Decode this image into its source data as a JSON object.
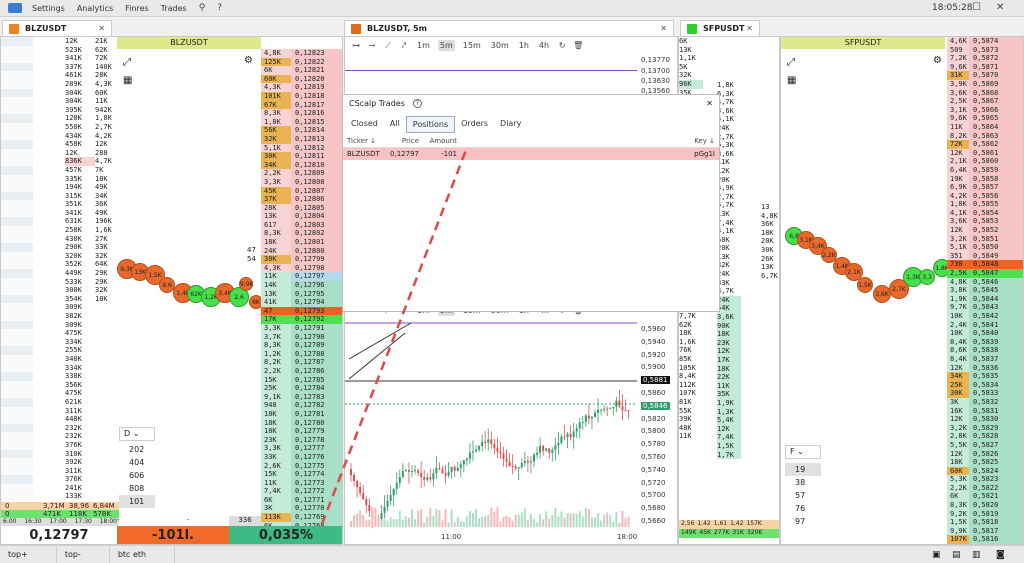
{
  "menu": {
    "settings": "Settings",
    "analytics": "Analytics",
    "finres": "Finres",
    "trades": "Trades",
    "clock": "18:05:28"
  },
  "tabs": {
    "left": {
      "label": "BLZUSDT",
      "color": "#f0821e"
    },
    "middle": {
      "label": "BLZUSDT, 5m",
      "color": "#e0691f"
    },
    "right": {
      "label": "SFPUSDT",
      "color": "#2ad12a"
    }
  },
  "left_dom": {
    "header": "BLZUSDT",
    "footer_price": "0,12797",
    "footer_pnl": "-101l.",
    "footer_pct": "0,035%",
    "footer_small": "336",
    "times": [
      "6:00",
      "16:30",
      "17:00",
      "17:30",
      "18:00"
    ],
    "prices_ask": [
      "0,12823",
      "0,12822",
      "0,12821",
      "0,12820",
      "0,12819",
      "0,12818",
      "0,12817",
      "0,12816",
      "0,12815",
      "0,12814",
      "0,12813",
      "0,12812",
      "0,12811",
      "0,12810",
      "0,12809",
      "0,12808",
      "0,12807",
      "0,12806",
      "0,12805",
      "0,12804",
      "0,12803",
      "0,12802",
      "0,12801",
      "0,12800",
      "0,12799",
      "0,12798"
    ],
    "vols_ask": [
      "4,8K",
      "125K",
      "6K",
      "60K",
      "4,3K",
      "101K",
      "67K",
      "8,3K",
      "1,8K",
      "56K",
      "32K",
      "5,1K",
      "30K",
      "34K",
      "2,2K",
      "3,3K",
      "45K",
      "37K",
      "28K",
      "13K",
      "617",
      "8,3K",
      "18K",
      "24K",
      "30K",
      "4,3K"
    ],
    "prices_bid": [
      "0,12797",
      "0,12796",
      "0,12795",
      "0,12794",
      "0,12793",
      "0,12792",
      "0,12791",
      "0,12790",
      "0,12789",
      "0,12788",
      "0,12787",
      "0,12786",
      "0,12785",
      "0,12784",
      "0,12783",
      "0,12782",
      "0,12781",
      "0,12780",
      "0,12779",
      "0,12778",
      "0,12777",
      "0,12776",
      "0,12775",
      "0,12774",
      "0,12773",
      "0,12772",
      "0,12771",
      "0,12770",
      "0,12769",
      "0,12768",
      "0,12767",
      "0,12766"
    ],
    "vols_bid": [
      "11K",
      "14K",
      "13K",
      "41K",
      "47",
      "17K",
      "3,3K",
      "3,7K",
      "8,3K",
      "1,2K",
      "8,2K",
      "2,2K",
      "15K",
      "25K",
      "9,1K",
      "948",
      "18K",
      "18K",
      "18K",
      "23K",
      "3,3K",
      "33K",
      "2,6K",
      "15K",
      "11K",
      "7,4K",
      "6K",
      "3K",
      "113K",
      "6K",
      "5,1K",
      "33K"
    ],
    "hist_left": [
      "12K",
      "523K",
      "341K",
      "337K",
      "461K",
      "289K",
      "304K",
      "304K",
      "395K",
      "120K",
      "550K",
      "434K",
      "458K",
      "12K",
      "836K",
      "457K",
      "335K",
      "194K",
      "315K",
      "351K",
      "341K",
      "631K",
      "258K",
      "430K",
      "290K",
      "320K",
      "352K",
      "449K",
      "533K",
      "300K",
      "354K",
      "309K",
      "382K",
      "309K",
      "475K",
      "334K",
      "255K",
      "340K",
      "334K",
      "338K",
      "356K",
      "475K",
      "621K",
      "311K",
      "448K",
      "232K",
      "232K",
      "376K",
      "310K",
      "392K",
      "311K",
      "376K",
      "241K",
      "133K"
    ],
    "hist_right": [
      "21K",
      "62K",
      "72K",
      "140K",
      "28K",
      "4,3K",
      "60K",
      "11K",
      "942K",
      "1,8K",
      "2,7K",
      "4,2K",
      "12K",
      "288",
      "4,7K",
      "7K",
      "18K",
      "49K",
      "34K",
      "36K",
      "49K",
      "196K",
      "1,6K",
      "27K",
      "33K",
      "32K",
      "64K",
      "29K",
      "29K",
      "32K",
      "18K"
    ],
    "stats": [
      "0",
      "3,71M",
      "38,96",
      "6,84M"
    ],
    "stats2": [
      "0",
      "471K",
      "118K",
      "578K"
    ],
    "mid_numbers": [
      "47",
      "54"
    ],
    "depth_box": "D",
    "depth_values": [
      "202",
      "404",
      "606",
      "808",
      "101"
    ],
    "bubble_labels": [
      "9,3K",
      "13K",
      "1,5K",
      "9,6",
      "1,4K",
      "62K",
      "1,2K",
      "3,4K",
      "2,6",
      "9,9K",
      "6K"
    ]
  },
  "cscalp": {
    "title": "CScalp Trades",
    "tabs": [
      "Closed",
      "All",
      "Positions",
      "Orders",
      "Diary"
    ],
    "cols": [
      "Ticker",
      "Price",
      "Amount",
      "Key"
    ],
    "row": [
      "BLZUSDT",
      "0,12797",
      "-101",
      "pGg1I"
    ]
  },
  "chart": {
    "timeframes": [
      "1m",
      "5m",
      "15m",
      "30m",
      "1h",
      "4h"
    ],
    "top_prices": [
      "0,13770",
      "0,13700",
      "0,13630",
      "0,13560"
    ],
    "y_labels": [
      "0,5960",
      "0,5940",
      "0,5920",
      "0,5900",
      "0,5881",
      "0,5860",
      "0,5846",
      "0,5820",
      "0,5800",
      "0,5780",
      "0,5760",
      "0,5740",
      "0,5720",
      "0,5700",
      "0,5680",
      "0,5660"
    ],
    "x_labels": [
      "11:00",
      "18:00"
    ],
    "current_price": "0,5881",
    "mark_price": "0,5846"
  },
  "right_dom": {
    "header": "SFPUSDT",
    "prices": [
      "0,5874",
      "0,5873",
      "0,5872",
      "0,5871",
      "0,5870",
      "0,5869",
      "0,5868",
      "0,5867",
      "0,5866",
      "0,5865",
      "0,5864",
      "0,5863",
      "0,5862",
      "0,5861",
      "0,5860",
      "0,5859",
      "0,5858",
      "0,5857",
      "0,5856",
      "0,5855",
      "0,5854",
      "0,5853",
      "0,5852",
      "0,5851",
      "0,5850",
      "0,5849",
      "0,5848",
      "0,5847",
      "0,5846",
      "0,5845",
      "0,5844",
      "0,5843",
      "0,5842",
      "0,5841",
      "0,5840",
      "0,5839",
      "0,5838",
      "0,5837",
      "0,5836",
      "0,5835",
      "0,5834",
      "0,5833",
      "0,5832",
      "0,5831",
      "0,5830",
      "0,5829",
      "0,5828",
      "0,5827",
      "0,5826",
      "0,5825",
      "0,5824",
      "0,5823",
      "0,5822",
      "0,5821",
      "0,5820",
      "0,5819",
      "0,5818",
      "0,5817",
      "0,5816"
    ],
    "vols": [
      "4,6K",
      "509",
      "7,2K",
      "9,6K",
      "31K",
      "3,9K",
      "3,6K",
      "2,5K",
      "3,1K",
      "9,6K",
      "11K",
      "8,2K",
      "72K",
      "12K",
      "2,1K",
      "6,4K",
      "19K",
      "6,9K",
      "4,2K",
      "1,8K",
      "4,1K",
      "3,6K",
      "12K",
      "3,2K",
      "5,1K",
      "351",
      "730",
      "2,5K",
      "4,8K",
      "3,8K",
      "1,9K",
      "9,7K",
      "10K",
      "2,4K",
      "10K",
      "8,4K",
      "8,6K",
      "8,4K",
      "12K",
      "34K",
      "25K",
      "30K",
      "3K",
      "16K",
      "12K",
      "3,2K",
      "2,8K",
      "5,5K",
      "12K",
      "18K",
      "60K",
      "5,3K",
      "2,2K",
      "6K",
      "8,3K",
      "9,2K",
      "1,5K",
      "9,9K",
      "107K"
    ],
    "depth_box": "F",
    "depth_values": [
      "19",
      "38",
      "57",
      "76",
      "97"
    ],
    "bubble_labels": [
      "6,8",
      "3,1K",
      "3,4K",
      "2,2K",
      "1,4K",
      "2,1K",
      "1,5K",
      "3,6K",
      "2,7K",
      "1,3K",
      "3,3",
      "1,8K"
    ]
  },
  "mid_dom": {
    "col1": [
      "6K",
      "13K",
      "1,1K",
      "5K",
      "32K",
      "96K",
      "35K",
      "37K",
      "2K",
      "4,3K",
      "3,6K",
      "3,6K",
      "2K",
      "1,7K",
      "12K",
      "23K",
      "17K",
      "13K",
      "11K",
      "42K",
      "5,8K",
      "9,3K",
      "20K",
      "7,8K",
      "14K",
      "19K",
      "12K",
      "31K",
      "31K",
      "11K",
      "8,8K",
      "23K",
      "7,7K",
      "62K",
      "18K",
      "1,6K",
      "76K",
      "85K",
      "105K",
      "8,4K",
      "112K",
      "107K",
      "81K",
      "55K",
      "39K",
      "48K",
      "11K"
    ],
    "col2": [
      "1,8K",
      "6,3K",
      "4,7K",
      "3,6K",
      "4,1K",
      "24K",
      "2,7K",
      "6,3K",
      "3,6K",
      "11K",
      "12K",
      "20K",
      "4,9K",
      "2,7K",
      "5,7K",
      "13K",
      "7,4K",
      "4,1K",
      "50K",
      "20K",
      "13K",
      "32K",
      "24K",
      "33K",
      "3,7K",
      "24K",
      "54K",
      "3,6K",
      "90K",
      "18K",
      "23K",
      "12K",
      "17K",
      "18K",
      "22K",
      "11K",
      "35K",
      "1,9K",
      "1,3K",
      "5,4K",
      "12K",
      "7,4K",
      "1,5K",
      "1,7K"
    ],
    "col3": [
      "13",
      "4,8K",
      "36K",
      "18K",
      "20K",
      "30K",
      "26K",
      "13K",
      "6,7K"
    ],
    "bottom": [
      "2,56",
      "1,42",
      "1,61",
      "1,42",
      "157K",
      "149K",
      "45K",
      "277K",
      "31K",
      "320K"
    ]
  },
  "bottom_tabs": [
    "top+",
    "top-",
    "btc eth"
  ]
}
